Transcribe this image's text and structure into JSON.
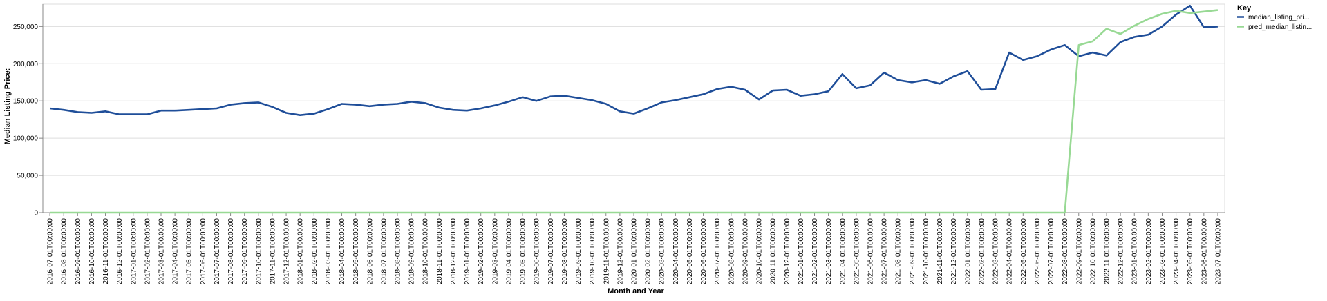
{
  "chart_data": {
    "type": "line",
    "xlabel": "Month and Year",
    "ylabel": "Median Listing Price:",
    "ylim": [
      0,
      280000
    ],
    "yticks": [
      0,
      50000,
      100000,
      150000,
      200000,
      250000
    ],
    "ytick_labels": [
      "0",
      "50,000",
      "100,000",
      "150,000",
      "200,000",
      "250,000"
    ],
    "grid": true,
    "legend": {
      "title": "Key",
      "placement": "top-right"
    },
    "x": [
      "2016-07-01T00:00:00",
      "2016-08-01T00:00:00",
      "2016-09-01T00:00:00",
      "2016-10-01T00:00:00",
      "2016-11-01T00:00:00",
      "2016-12-01T00:00:00",
      "2017-01-01T00:00:00",
      "2017-02-01T00:00:00",
      "2017-03-01T00:00:00",
      "2017-04-01T00:00:00",
      "2017-05-01T00:00:00",
      "2017-06-01T00:00:00",
      "2017-07-01T00:00:00",
      "2017-08-01T00:00:00",
      "2017-09-01T00:00:00",
      "2017-10-01T00:00:00",
      "2017-11-01T00:00:00",
      "2017-12-01T00:00:00",
      "2018-01-01T00:00:00",
      "2018-02-01T00:00:00",
      "2018-03-01T00:00:00",
      "2018-04-01T00:00:00",
      "2018-05-01T00:00:00",
      "2018-06-01T00:00:00",
      "2018-07-01T00:00:00",
      "2018-08-01T00:00:00",
      "2018-09-01T00:00:00",
      "2018-10-01T00:00:00",
      "2018-11-01T00:00:00",
      "2018-12-01T00:00:00",
      "2019-01-01T00:00:00",
      "2019-02-01T00:00:00",
      "2019-03-01T00:00:00",
      "2019-04-01T00:00:00",
      "2019-05-01T00:00:00",
      "2019-06-01T00:00:00",
      "2019-07-01T00:00:00",
      "2019-08-01T00:00:00",
      "2019-09-01T00:00:00",
      "2019-10-01T00:00:00",
      "2019-11-01T00:00:00",
      "2019-12-01T00:00:00",
      "2020-01-01T00:00:00",
      "2020-02-01T00:00:00",
      "2020-03-01T00:00:00",
      "2020-04-01T00:00:00",
      "2020-05-01T00:00:00",
      "2020-06-01T00:00:00",
      "2020-07-01T00:00:00",
      "2020-08-01T00:00:00",
      "2020-09-01T00:00:00",
      "2020-10-01T00:00:00",
      "2020-11-01T00:00:00",
      "2020-12-01T00:00:00",
      "2021-01-01T00:00:00",
      "2021-02-01T00:00:00",
      "2021-03-01T00:00:00",
      "2021-04-01T00:00:00",
      "2021-05-01T00:00:00",
      "2021-06-01T00:00:00",
      "2021-07-01T00:00:00",
      "2021-08-01T00:00:00",
      "2021-09-01T00:00:00",
      "2021-10-01T00:00:00",
      "2021-11-01T00:00:00",
      "2021-12-01T00:00:00",
      "2022-01-01T00:00:00",
      "2022-02-01T00:00:00",
      "2022-03-01T00:00:00",
      "2022-04-01T00:00:00",
      "2022-05-01T00:00:00",
      "2022-06-01T00:00:00",
      "2022-07-01T00:00:00",
      "2022-08-01T00:00:00",
      "2022-09-01T00:00:00",
      "2022-10-01T00:00:00",
      "2022-11-01T00:00:00",
      "2022-12-01T00:00:00",
      "2023-01-01T00:00:00",
      "2023-02-01T00:00:00",
      "2023-03-01T00:00:00",
      "2023-04-01T00:00:00",
      "2023-05-01T00:00:00",
      "2023-06-01T00:00:00",
      "2023-07-01T00:00:00"
    ],
    "series": [
      {
        "name": "median_listing_pri...",
        "color": "#1f4e99",
        "values": [
          140000,
          138000,
          135000,
          134000,
          136000,
          132000,
          132000,
          132000,
          137000,
          137000,
          138000,
          139000,
          140000,
          145000,
          147000,
          148000,
          142000,
          134000,
          131000,
          133000,
          139000,
          146000,
          145000,
          143000,
          145000,
          146000,
          149000,
          147000,
          141000,
          138000,
          137000,
          140000,
          144000,
          149000,
          155000,
          150000,
          156000,
          157000,
          154000,
          151000,
          146000,
          136000,
          133000,
          140000,
          148000,
          151000,
          155000,
          159000,
          166000,
          169000,
          165000,
          152000,
          164000,
          165000,
          157000,
          159000,
          163000,
          186000,
          167000,
          171000,
          188000,
          178000,
          175000,
          178000,
          173000,
          183000,
          190000,
          165000,
          166000,
          215000,
          205000,
          210000,
          219000,
          225000,
          210000,
          215000,
          211000,
          229000,
          236000,
          239000,
          250000,
          266000,
          278000,
          249000,
          250000
        ]
      },
      {
        "name": "pred_median_listin...",
        "color": "#98d994",
        "values": [
          0,
          0,
          0,
          0,
          0,
          0,
          0,
          0,
          0,
          0,
          0,
          0,
          0,
          0,
          0,
          0,
          0,
          0,
          0,
          0,
          0,
          0,
          0,
          0,
          0,
          0,
          0,
          0,
          0,
          0,
          0,
          0,
          0,
          0,
          0,
          0,
          0,
          0,
          0,
          0,
          0,
          0,
          0,
          0,
          0,
          0,
          0,
          0,
          0,
          0,
          0,
          0,
          0,
          0,
          0,
          0,
          0,
          0,
          0,
          0,
          0,
          0,
          0,
          0,
          0,
          0,
          0,
          0,
          0,
          0,
          0,
          0,
          0,
          0,
          225000,
          230000,
          247000,
          240000,
          251000,
          260000,
          267000,
          271000,
          268000,
          270000,
          272000
        ]
      }
    ]
  }
}
